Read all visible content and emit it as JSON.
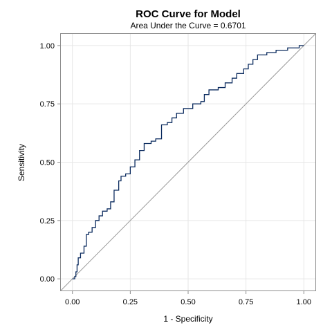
{
  "chart_data": {
    "type": "line",
    "title": "ROC Curve for Model",
    "subtitle": "Area Under the Curve = 0.6701",
    "xlabel": "1 - Specificity",
    "ylabel": "Sensitivity",
    "xlim": [
      -0.05,
      1.05
    ],
    "ylim": [
      -0.05,
      1.05
    ],
    "x_ticks": [
      {
        "value": 0,
        "label": "0.00"
      },
      {
        "value": 0.25,
        "label": "0.25"
      },
      {
        "value": 0.5,
        "label": "0.50"
      },
      {
        "value": 0.75,
        "label": "0.75"
      },
      {
        "value": 1,
        "label": "1.00"
      }
    ],
    "y_ticks": [
      {
        "value": 0,
        "label": "0.00"
      },
      {
        "value": 0.25,
        "label": "0.25"
      },
      {
        "value": 0.5,
        "label": "0.50"
      },
      {
        "value": 0.75,
        "label": "0.75"
      },
      {
        "value": 1,
        "label": "1.00"
      }
    ],
    "grid": true,
    "series": [
      {
        "kind": "step",
        "color": "#0a2a5e",
        "points": [
          [
            0.0,
            0.0
          ],
          [
            0.01,
            0.01
          ],
          [
            0.015,
            0.03
          ],
          [
            0.02,
            0.06
          ],
          [
            0.025,
            0.09
          ],
          [
            0.035,
            0.11
          ],
          [
            0.05,
            0.14
          ],
          [
            0.06,
            0.19
          ],
          [
            0.07,
            0.2
          ],
          [
            0.085,
            0.22
          ],
          [
            0.1,
            0.25
          ],
          [
            0.115,
            0.27
          ],
          [
            0.13,
            0.29
          ],
          [
            0.15,
            0.3
          ],
          [
            0.165,
            0.33
          ],
          [
            0.18,
            0.38
          ],
          [
            0.2,
            0.42
          ],
          [
            0.21,
            0.44
          ],
          [
            0.23,
            0.45
          ],
          [
            0.25,
            0.48
          ],
          [
            0.27,
            0.51
          ],
          [
            0.29,
            0.55
          ],
          [
            0.31,
            0.58
          ],
          [
            0.34,
            0.59
          ],
          [
            0.36,
            0.6
          ],
          [
            0.385,
            0.66
          ],
          [
            0.41,
            0.67
          ],
          [
            0.43,
            0.69
          ],
          [
            0.45,
            0.71
          ],
          [
            0.48,
            0.73
          ],
          [
            0.52,
            0.75
          ],
          [
            0.555,
            0.76
          ],
          [
            0.57,
            0.79
          ],
          [
            0.59,
            0.81
          ],
          [
            0.63,
            0.82
          ],
          [
            0.66,
            0.84
          ],
          [
            0.69,
            0.86
          ],
          [
            0.71,
            0.88
          ],
          [
            0.74,
            0.9
          ],
          [
            0.76,
            0.92
          ],
          [
            0.78,
            0.94
          ],
          [
            0.8,
            0.96
          ],
          [
            0.84,
            0.97
          ],
          [
            0.88,
            0.98
          ],
          [
            0.93,
            0.99
          ],
          [
            0.98,
            1.0
          ],
          [
            1.0,
            1.0
          ]
        ]
      },
      {
        "kind": "reference",
        "color": "#9a9a9a",
        "points": [
          [
            -0.05,
            -0.05
          ],
          [
            1.05,
            1.05
          ]
        ]
      }
    ],
    "colors": {
      "grid": "#e6e6e6",
      "frame": "#8c8c8c",
      "text": "#000000"
    }
  }
}
